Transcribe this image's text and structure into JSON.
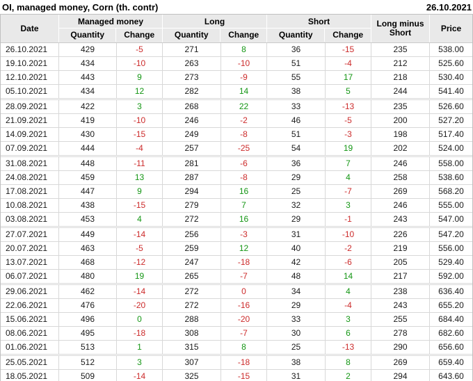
{
  "title": "OI, managed money, Corn (th. contr)",
  "report_date": "26.10.2021",
  "colors": {
    "positive": "#149614",
    "negative": "#cc2b2b",
    "header_bg": "#e9e9e9",
    "border_outer": "#c0c0c0",
    "border_inner": "#d8d8d8"
  },
  "table": {
    "columns": {
      "date": "Date",
      "managed_money": "Managed money",
      "long": "Long",
      "short": "Short",
      "quantity": "Quantity",
      "change": "Change",
      "long_minus_short": "Long minus Short",
      "price": "Price"
    },
    "rows": [
      {
        "date": "26.10.2021",
        "month_start": false,
        "mm_q": "429",
        "mm_c": {
          "v": "-5",
          "color": "negative"
        },
        "long_q": "271",
        "long_c": {
          "v": "8",
          "color": "positive"
        },
        "short_q": "36",
        "short_c": {
          "v": "-15",
          "color": "negative"
        },
        "lms": "235",
        "price": "538.00"
      },
      {
        "date": "19.10.2021",
        "month_start": false,
        "mm_q": "434",
        "mm_c": {
          "v": "-10",
          "color": "negative"
        },
        "long_q": "263",
        "long_c": {
          "v": "-10",
          "color": "negative"
        },
        "short_q": "51",
        "short_c": {
          "v": "-4",
          "color": "negative"
        },
        "lms": "212",
        "price": "525.60"
      },
      {
        "date": "12.10.2021",
        "month_start": false,
        "mm_q": "443",
        "mm_c": {
          "v": "9",
          "color": "positive"
        },
        "long_q": "273",
        "long_c": {
          "v": "-9",
          "color": "negative"
        },
        "short_q": "55",
        "short_c": {
          "v": "17",
          "color": "positive"
        },
        "lms": "218",
        "price": "530.40"
      },
      {
        "date": "05.10.2021",
        "month_start": false,
        "mm_q": "434",
        "mm_c": {
          "v": "12",
          "color": "positive"
        },
        "long_q": "282",
        "long_c": {
          "v": "14",
          "color": "positive"
        },
        "short_q": "38",
        "short_c": {
          "v": "5",
          "color": "positive"
        },
        "lms": "244",
        "price": "541.40"
      },
      {
        "date": "28.09.2021",
        "month_start": true,
        "mm_q": "422",
        "mm_c": {
          "v": "3",
          "color": "positive"
        },
        "long_q": "268",
        "long_c": {
          "v": "22",
          "color": "positive"
        },
        "short_q": "33",
        "short_c": {
          "v": "-13",
          "color": "negative"
        },
        "lms": "235",
        "price": "526.60"
      },
      {
        "date": "21.09.2021",
        "month_start": false,
        "mm_q": "419",
        "mm_c": {
          "v": "-10",
          "color": "negative"
        },
        "long_q": "246",
        "long_c": {
          "v": "-2",
          "color": "negative"
        },
        "short_q": "46",
        "short_c": {
          "v": "-5",
          "color": "negative"
        },
        "lms": "200",
        "price": "527.20"
      },
      {
        "date": "14.09.2021",
        "month_start": false,
        "mm_q": "430",
        "mm_c": {
          "v": "-15",
          "color": "negative"
        },
        "long_q": "249",
        "long_c": {
          "v": "-8",
          "color": "negative"
        },
        "short_q": "51",
        "short_c": {
          "v": "-3",
          "color": "negative"
        },
        "lms": "198",
        "price": "517.40"
      },
      {
        "date": "07.09.2021",
        "month_start": false,
        "mm_q": "444",
        "mm_c": {
          "v": "-4",
          "color": "negative"
        },
        "long_q": "257",
        "long_c": {
          "v": "-25",
          "color": "negative"
        },
        "short_q": "54",
        "short_c": {
          "v": "19",
          "color": "positive"
        },
        "lms": "202",
        "price": "524.00"
      },
      {
        "date": "31.08.2021",
        "month_start": true,
        "mm_q": "448",
        "mm_c": {
          "v": "-11",
          "color": "negative"
        },
        "long_q": "281",
        "long_c": {
          "v": "-6",
          "color": "negative"
        },
        "short_q": "36",
        "short_c": {
          "v": "7",
          "color": "positive"
        },
        "lms": "246",
        "price": "558.00"
      },
      {
        "date": "24.08.2021",
        "month_start": false,
        "mm_q": "459",
        "mm_c": {
          "v": "13",
          "color": "positive"
        },
        "long_q": "287",
        "long_c": {
          "v": "-8",
          "color": "negative"
        },
        "short_q": "29",
        "short_c": {
          "v": "4",
          "color": "positive"
        },
        "lms": "258",
        "price": "538.60"
      },
      {
        "date": "17.08.2021",
        "month_start": false,
        "mm_q": "447",
        "mm_c": {
          "v": "9",
          "color": "positive"
        },
        "long_q": "294",
        "long_c": {
          "v": "16",
          "color": "positive"
        },
        "short_q": "25",
        "short_c": {
          "v": "-7",
          "color": "negative"
        },
        "lms": "269",
        "price": "568.20"
      },
      {
        "date": "10.08.2021",
        "month_start": false,
        "mm_q": "438",
        "mm_c": {
          "v": "-15",
          "color": "negative"
        },
        "long_q": "279",
        "long_c": {
          "v": "7",
          "color": "positive"
        },
        "short_q": "32",
        "short_c": {
          "v": "3",
          "color": "positive"
        },
        "lms": "246",
        "price": "555.00"
      },
      {
        "date": "03.08.2021",
        "month_start": false,
        "mm_q": "453",
        "mm_c": {
          "v": "4",
          "color": "positive"
        },
        "long_q": "272",
        "long_c": {
          "v": "16",
          "color": "positive"
        },
        "short_q": "29",
        "short_c": {
          "v": "-1",
          "color": "negative"
        },
        "lms": "243",
        "price": "547.00"
      },
      {
        "date": "27.07.2021",
        "month_start": true,
        "mm_q": "449",
        "mm_c": {
          "v": "-14",
          "color": "negative"
        },
        "long_q": "256",
        "long_c": {
          "v": "-3",
          "color": "negative"
        },
        "short_q": "31",
        "short_c": {
          "v": "-10",
          "color": "negative"
        },
        "lms": "226",
        "price": "547.20"
      },
      {
        "date": "20.07.2021",
        "month_start": false,
        "mm_q": "463",
        "mm_c": {
          "v": "-5",
          "color": "negative"
        },
        "long_q": "259",
        "long_c": {
          "v": "12",
          "color": "positive"
        },
        "short_q": "40",
        "short_c": {
          "v": "-2",
          "color": "negative"
        },
        "lms": "219",
        "price": "556.00"
      },
      {
        "date": "13.07.2021",
        "month_start": false,
        "mm_q": "468",
        "mm_c": {
          "v": "-12",
          "color": "negative"
        },
        "long_q": "247",
        "long_c": {
          "v": "-18",
          "color": "negative"
        },
        "short_q": "42",
        "short_c": {
          "v": "-6",
          "color": "negative"
        },
        "lms": "205",
        "price": "529.40"
      },
      {
        "date": "06.07.2021",
        "month_start": false,
        "mm_q": "480",
        "mm_c": {
          "v": "19",
          "color": "positive"
        },
        "long_q": "265",
        "long_c": {
          "v": "-7",
          "color": "negative"
        },
        "short_q": "48",
        "short_c": {
          "v": "14",
          "color": "positive"
        },
        "lms": "217",
        "price": "592.00"
      },
      {
        "date": "29.06.2021",
        "month_start": true,
        "mm_q": "462",
        "mm_c": {
          "v": "-14",
          "color": "negative"
        },
        "long_q": "272",
        "long_c": {
          "v": "0",
          "color": "negative"
        },
        "short_q": "34",
        "short_c": {
          "v": "4",
          "color": "positive"
        },
        "lms": "238",
        "price": "636.40"
      },
      {
        "date": "22.06.2021",
        "month_start": false,
        "mm_q": "476",
        "mm_c": {
          "v": "-20",
          "color": "negative"
        },
        "long_q": "272",
        "long_c": {
          "v": "-16",
          "color": "negative"
        },
        "short_q": "29",
        "short_c": {
          "v": "-4",
          "color": "negative"
        },
        "lms": "243",
        "price": "655.20"
      },
      {
        "date": "15.06.2021",
        "month_start": false,
        "mm_q": "496",
        "mm_c": {
          "v": "0",
          "color": "positive"
        },
        "long_q": "288",
        "long_c": {
          "v": "-20",
          "color": "negative"
        },
        "short_q": "33",
        "short_c": {
          "v": "3",
          "color": "positive"
        },
        "lms": "255",
        "price": "684.40"
      },
      {
        "date": "08.06.2021",
        "month_start": false,
        "mm_q": "495",
        "mm_c": {
          "v": "-18",
          "color": "negative"
        },
        "long_q": "308",
        "long_c": {
          "v": "-7",
          "color": "negative"
        },
        "short_q": "30",
        "short_c": {
          "v": "6",
          "color": "positive"
        },
        "lms": "278",
        "price": "682.60"
      },
      {
        "date": "01.06.2021",
        "month_start": false,
        "mm_q": "513",
        "mm_c": {
          "v": "1",
          "color": "positive"
        },
        "long_q": "315",
        "long_c": {
          "v": "8",
          "color": "positive"
        },
        "short_q": "25",
        "short_c": {
          "v": "-13",
          "color": "negative"
        },
        "lms": "290",
        "price": "656.60"
      },
      {
        "date": "25.05.2021",
        "month_start": true,
        "mm_q": "512",
        "mm_c": {
          "v": "3",
          "color": "positive"
        },
        "long_q": "307",
        "long_c": {
          "v": "-18",
          "color": "negative"
        },
        "short_q": "38",
        "short_c": {
          "v": "8",
          "color": "positive"
        },
        "lms": "269",
        "price": "659.40"
      },
      {
        "date": "18.05.2021",
        "month_start": false,
        "mm_q": "509",
        "mm_c": {
          "v": "-14",
          "color": "negative"
        },
        "long_q": "325",
        "long_c": {
          "v": "-15",
          "color": "negative"
        },
        "short_q": "31",
        "short_c": {
          "v": "2",
          "color": "positive"
        },
        "lms": "294",
        "price": "643.60"
      }
    ]
  }
}
